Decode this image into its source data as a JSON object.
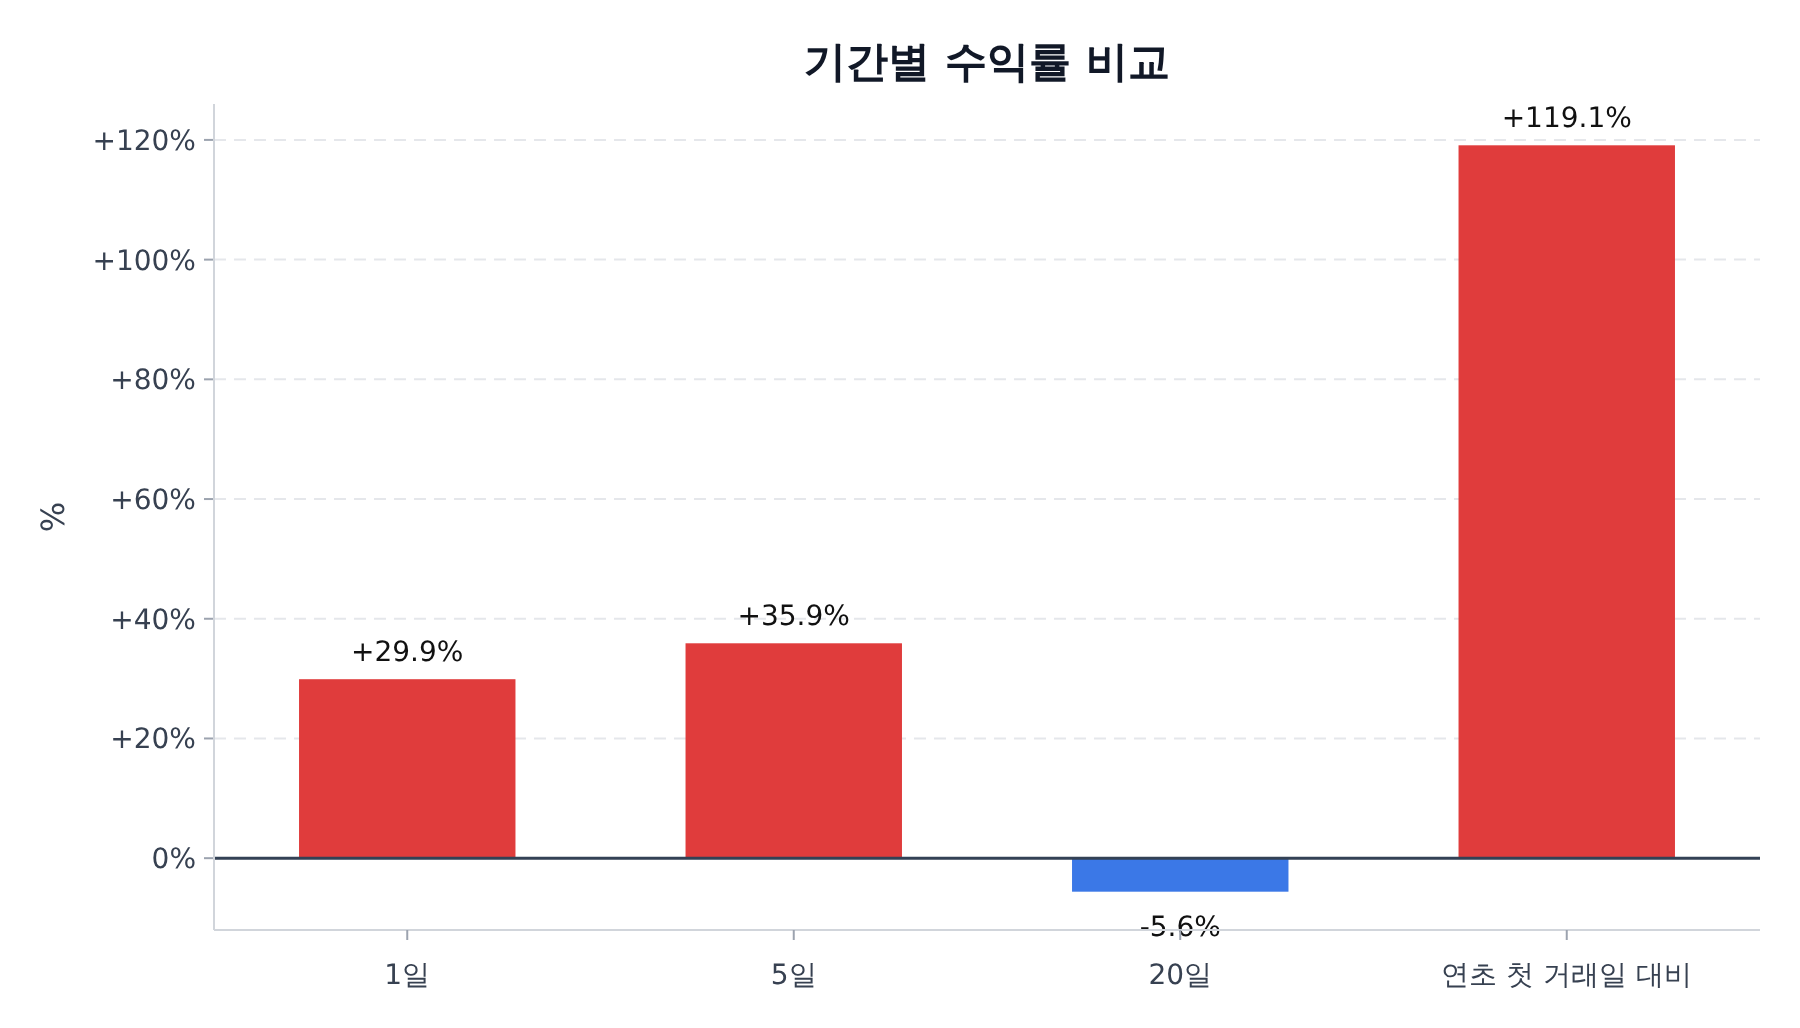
{
  "chart_data": {
    "type": "bar",
    "title": "기간별 수익률 비교",
    "ylabel": "%",
    "categories": [
      "1일",
      "5일",
      "20일",
      "연초 첫 거래일 대비"
    ],
    "values": [
      29.9,
      35.9,
      -5.6,
      119.1
    ],
    "colors": [
      "#e03c3c",
      "#e03c3c",
      "#3b78e7",
      "#e03c3c"
    ],
    "value_labels": [
      "+29.9%",
      "+35.9%",
      "-5.6%",
      "+119.1%"
    ],
    "ylim": [
      -12,
      126
    ],
    "yticks": [
      {
        "value": 0,
        "label": "0%"
      },
      {
        "value": 20,
        "label": "+20%"
      },
      {
        "value": 40,
        "label": "+40%"
      },
      {
        "value": 60,
        "label": "+60%"
      },
      {
        "value": 80,
        "label": "+80%"
      },
      {
        "value": 100,
        "label": "+100%"
      },
      {
        "value": 120,
        "label": "+120%"
      }
    ],
    "grid": "y",
    "ref_lines": [
      {
        "axis": "y",
        "value": 0,
        "color": "#334155"
      }
    ]
  }
}
